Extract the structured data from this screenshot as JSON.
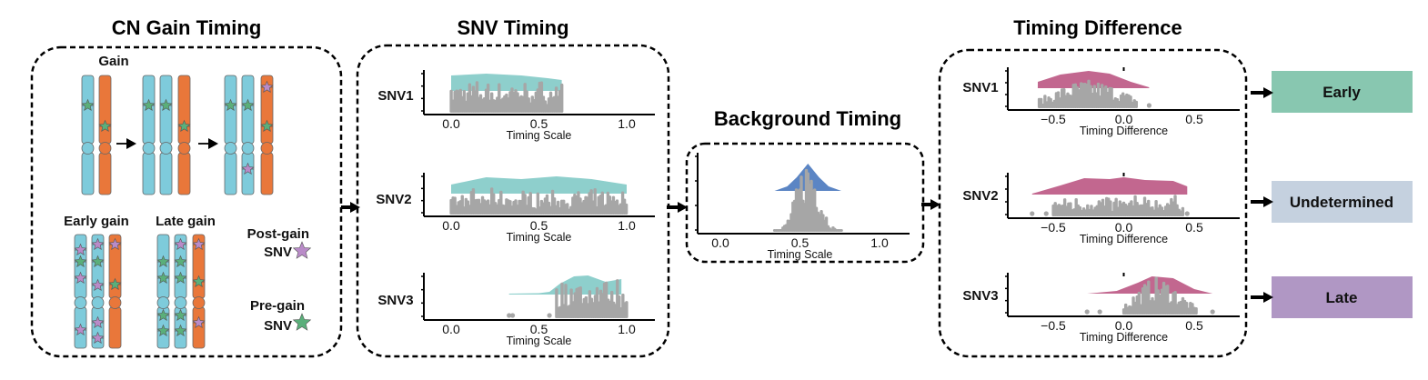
{
  "panels": {
    "cn_gain": {
      "title": "CN Gain Timing",
      "gain_label": "Gain",
      "early_label": "Early gain",
      "late_label": "Late gain",
      "post_gain_line1": "Post-gain",
      "post_gain_line2": "SNV",
      "pre_gain_line1": "Pre-gain",
      "pre_gain_line2": "SNV"
    },
    "snv_timing": {
      "title": "SNV Timing",
      "rows": [
        "SNV1",
        "SNV2",
        "SNV3"
      ],
      "ticks": [
        "0.0",
        "0.5",
        "1.0"
      ],
      "axis_title": "Timing Scale"
    },
    "background": {
      "title": "Background Timing",
      "ticks": [
        "0.0",
        "0.5",
        "1.0"
      ],
      "axis_title": "Timing Scale"
    },
    "timing_difference": {
      "title": "Timing Difference",
      "rows": [
        "SNV1",
        "SNV2",
        "SNV3"
      ],
      "ticks": [
        "−0.5",
        "0.0",
        "0.5"
      ],
      "axis_title": "Timing Difference"
    }
  },
  "results": [
    {
      "label": "Early",
      "color": "#88c7b0"
    },
    {
      "label": "Undetermined",
      "color": "#c5d1df"
    },
    {
      "label": "Late",
      "color": "#b097c4"
    }
  ],
  "colors": {
    "maternal_chromosome": "#7ecbdb",
    "paternal_chromosome": "#e9773a",
    "post_gain_star": "#b98bc8",
    "pre_gain_star": "#5aaf7a",
    "snv_density": "#8ecfcc",
    "background_density": "#5b85c4",
    "difference_density": "#c2678f",
    "points": "#a6a6a6"
  }
}
